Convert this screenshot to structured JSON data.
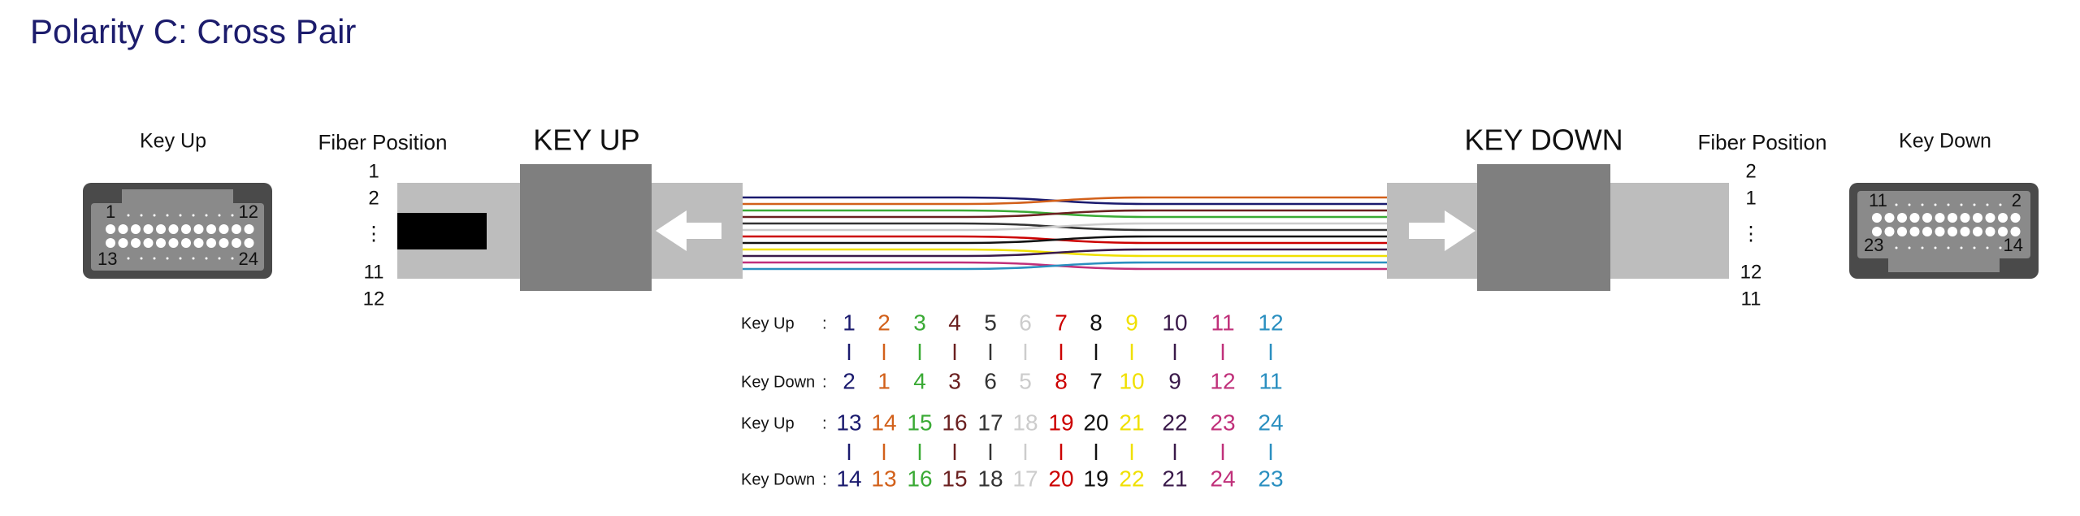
{
  "title": "Polarity C: Cross Pair",
  "left_connector": {
    "label": "Key Up",
    "pins": [
      "1",
      "12",
      "13",
      "24"
    ]
  },
  "left_fiber_position": {
    "label": "Fiber Position",
    "positions": [
      "1",
      "2",
      "⋮",
      "11",
      "12"
    ]
  },
  "left_boot_label": "KEY UP",
  "right_boot_label": "KEY DOWN",
  "right_fiber_position": {
    "label": "Fiber Position",
    "positions": [
      "2",
      "1",
      "⋮",
      "12",
      "11"
    ]
  },
  "right_connector": {
    "label": "Key Down",
    "pins": [
      "11",
      "2",
      "23",
      "14"
    ]
  },
  "mapping": {
    "rows": [
      {
        "label": "Key Up",
        "separator": ":",
        "values": [
          "1",
          "2",
          "3",
          "4",
          "5",
          "6",
          "7",
          "8",
          "9",
          "10",
          "11",
          "12"
        ]
      },
      {
        "label": "Key Down",
        "separator": ":",
        "values": [
          "2",
          "1",
          "4",
          "3",
          "6",
          "5",
          "8",
          "7",
          "10",
          "9",
          "12",
          "11"
        ]
      },
      {
        "label": "Key Up",
        "separator": ":",
        "values": [
          "13",
          "14",
          "15",
          "16",
          "17",
          "18",
          "19",
          "20",
          "21",
          "22",
          "23",
          "24"
        ]
      },
      {
        "label": "Key Down",
        "separator": ":",
        "values": [
          "14",
          "13",
          "16",
          "15",
          "18",
          "17",
          "20",
          "19",
          "22",
          "21",
          "24",
          "23"
        ]
      }
    ]
  }
}
